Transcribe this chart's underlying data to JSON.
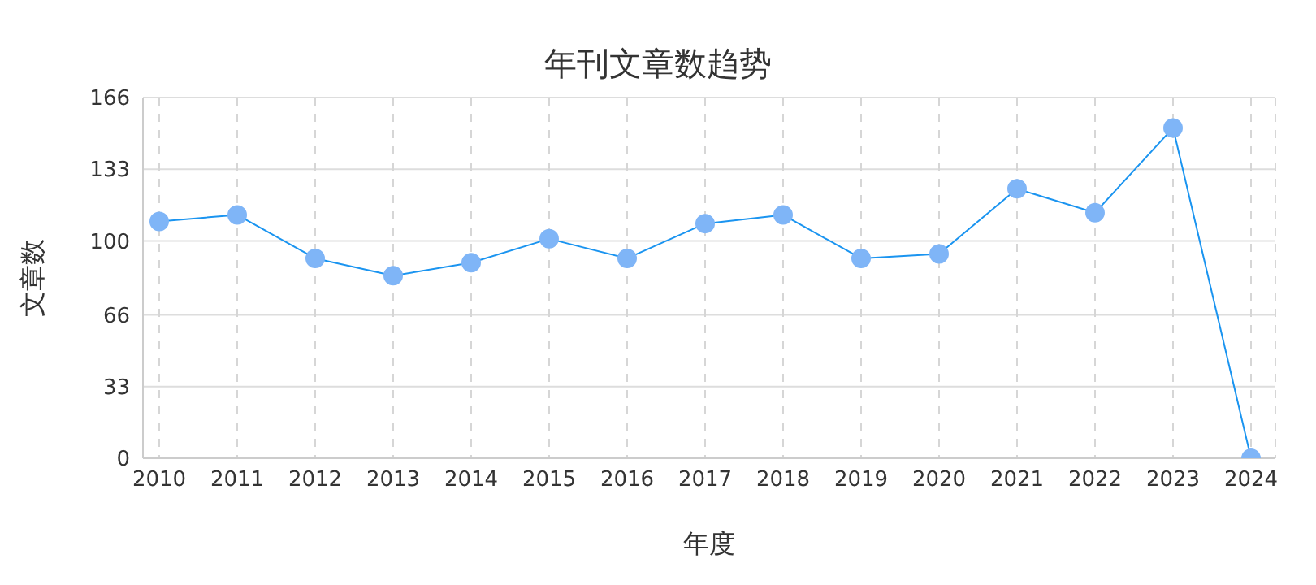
{
  "chart_data": {
    "type": "line",
    "title": "年刊文章数趋势",
    "xlabel": "年度",
    "ylabel": "文章数",
    "categories": [
      "2010",
      "2011",
      "2012",
      "2013",
      "2014",
      "2015",
      "2016",
      "2017",
      "2018",
      "2019",
      "2020",
      "2021",
      "2022",
      "2023",
      "2024"
    ],
    "series": [
      {
        "color": "#1a94f0",
        "values": [
          109,
          112,
          92,
          84,
          90,
          101,
          92,
          108,
          112,
          92,
          94,
          124,
          113,
          152,
          0
        ]
      }
    ],
    "ylim": [
      0,
      166
    ],
    "yticks": [
      0,
      33,
      66,
      100,
      133,
      166
    ],
    "grid": true,
    "marker": "circle",
    "line_style": "solid",
    "legend": false
  }
}
